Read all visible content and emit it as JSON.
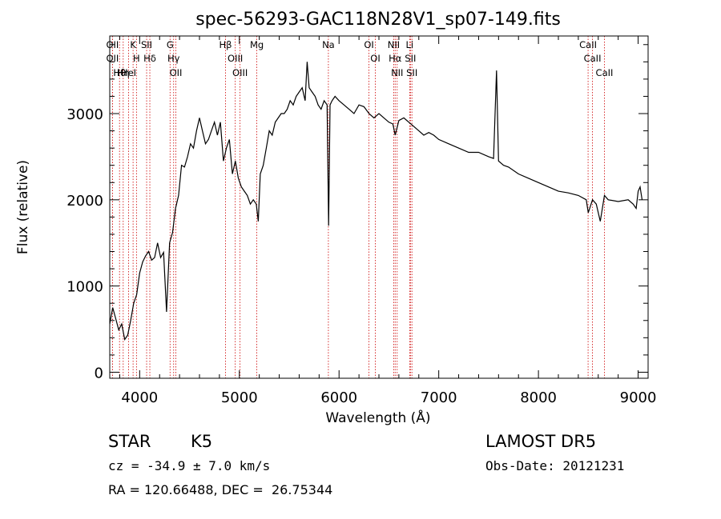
{
  "chart_data": {
    "type": "line",
    "title": "spec-56293-GAC118N28V1_sp07-149.fits",
    "xlabel": "Wavelength (Å)",
    "ylabel": "Flux (relative)",
    "xlim": [
      3700,
      9100
    ],
    "ylim": [
      -70,
      3900
    ],
    "xticks": [
      4000,
      5000,
      6000,
      7000,
      8000,
      9000
    ],
    "yticks": [
      0,
      1000,
      2000,
      3000
    ],
    "grid": false,
    "legend": "none",
    "line_color": "#000000",
    "marker_color": "#cc0000",
    "series": [
      {
        "x": [
          3700,
          3730,
          3760,
          3790,
          3820,
          3850,
          3880,
          3910,
          3940,
          3970,
          4000,
          4030,
          4060,
          4090,
          4120,
          4150,
          4180,
          4210,
          4240,
          4270,
          4300,
          4330,
          4360,
          4390,
          4420,
          4450,
          4480,
          4510,
          4540,
          4570,
          4600,
          4630,
          4660,
          4690,
          4720,
          4750,
          4780,
          4810,
          4840,
          4870,
          4900,
          4930,
          4960,
          4990,
          5020,
          5050,
          5080,
          5110,
          5140,
          5170,
          5190,
          5210,
          5240,
          5270,
          5300,
          5330,
          5360,
          5390,
          5420,
          5450,
          5480,
          5510,
          5540,
          5570,
          5600,
          5630,
          5660,
          5680,
          5700,
          5730,
          5760,
          5790,
          5820,
          5850,
          5880,
          5895,
          5910,
          5930,
          5960,
          6000,
          6050,
          6100,
          6150,
          6200,
          6250,
          6300,
          6350,
          6400,
          6450,
          6500,
          6540,
          6563,
          6600,
          6650,
          6700,
          6750,
          6800,
          6850,
          6900,
          6950,
          7000,
          7100,
          7200,
          7300,
          7400,
          7500,
          7550,
          7580,
          7600,
          7650,
          7700,
          7800,
          7900,
          8000,
          8100,
          8200,
          8300,
          8400,
          8480,
          8500,
          8542,
          8580,
          8620,
          8662,
          8700,
          8800,
          8900,
          8950,
          8980,
          9000,
          9020,
          9040
        ],
        "y": [
          560,
          750,
          620,
          490,
          560,
          380,
          430,
          600,
          800,
          900,
          1150,
          1280,
          1350,
          1400,
          1300,
          1330,
          1500,
          1330,
          1390,
          700,
          1500,
          1620,
          1900,
          2050,
          2400,
          2380,
          2500,
          2650,
          2600,
          2800,
          2950,
          2800,
          2650,
          2700,
          2800,
          2900,
          2750,
          2900,
          2450,
          2600,
          2700,
          2300,
          2450,
          2250,
          2150,
          2100,
          2050,
          1950,
          2000,
          1950,
          1750,
          2300,
          2400,
          2600,
          2800,
          2750,
          2900,
          2950,
          3000,
          3000,
          3050,
          3150,
          3100,
          3200,
          3250,
          3300,
          3150,
          3600,
          3300,
          3250,
          3200,
          3100,
          3050,
          3150,
          3100,
          1700,
          3100,
          3150,
          3200,
          3150,
          3100,
          3050,
          3000,
          3100,
          3080,
          3000,
          2950,
          3000,
          2950,
          2900,
          2880,
          2750,
          2920,
          2950,
          2900,
          2850,
          2800,
          2750,
          2780,
          2750,
          2700,
          2650,
          2600,
          2550,
          2550,
          2500,
          2480,
          3500,
          2450,
          2400,
          2380,
          2300,
          2250,
          2200,
          2150,
          2100,
          2080,
          2050,
          2000,
          1850,
          2000,
          1950,
          1750,
          2050,
          2000,
          1980,
          2000,
          1950,
          1900,
          2100,
          2150,
          2000
        ]
      }
    ],
    "line_markers": [
      {
        "label": "Hθ",
        "wavelength": 3798
      },
      {
        "label": "K",
        "wavelength": 3934
      },
      {
        "label": "Hδ",
        "wavelength": 4102
      },
      {
        "label": "OII",
        "wavelength": 4363
      },
      {
        "label": "OII",
        "wavelength": 3727
      },
      {
        "label": "HeI",
        "wavelength": 3889
      },
      {
        "label": "SII",
        "wavelength": 4070
      },
      {
        "label": "Hγ",
        "wavelength": 4341
      },
      {
        "label": "OII",
        "wavelength": 3727
      },
      {
        "label": "Hη",
        "wavelength": 3835
      },
      {
        "label": "H",
        "wavelength": 3968
      },
      {
        "label": "G",
        "wavelength": 4305
      },
      {
        "label": "OIII",
        "wavelength": 5007
      },
      {
        "label": "OIII",
        "wavelength": 4959
      },
      {
        "label": "Hβ",
        "wavelength": 4861
      },
      {
        "label": "Mg",
        "wavelength": 5175
      },
      {
        "label": "Na",
        "wavelength": 5893
      },
      {
        "label": "OI",
        "wavelength": 6300
      },
      {
        "label": "OI",
        "wavelength": 6364
      },
      {
        "label": "Hα",
        "wavelength": 6563
      },
      {
        "label": "NII",
        "wavelength": 6548
      },
      {
        "label": "NII",
        "wavelength": 6583
      },
      {
        "label": "SII",
        "wavelength": 6716
      },
      {
        "label": "Li",
        "wavelength": 6708
      },
      {
        "label": "SII",
        "wavelength": 6731
      },
      {
        "label": "CaII",
        "wavelength": 8542
      },
      {
        "label": "CaII",
        "wavelength": 8498
      },
      {
        "label": "CaII",
        "wavelength": 8662
      }
    ]
  },
  "info": {
    "object_class": "STAR",
    "subclass": "K5",
    "survey": "LAMOST DR5",
    "cz": "cz = -34.9 ± 7.0 km/s",
    "obs_date": "Obs-Date: 20121231",
    "coords": "RA = 120.66488, DEC =  26.75344"
  }
}
